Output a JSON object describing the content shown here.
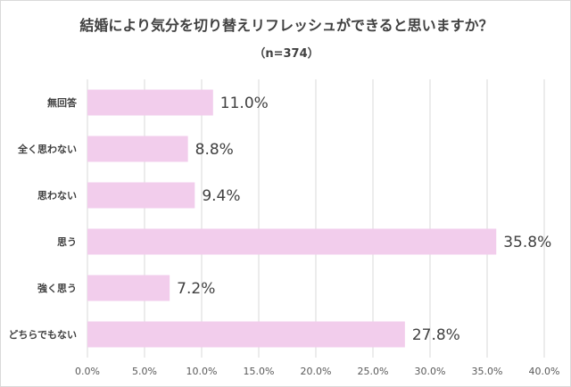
{
  "chart_data": {
    "type": "bar",
    "orientation": "horizontal",
    "title": "結婚により気分を切り替えリフレッシュができると思いますか？",
    "subtitle": "（n=374）",
    "categories": [
      "無回答",
      "全く思わない",
      "思わない",
      "思う",
      "強く思う",
      "どちらでもない"
    ],
    "values": [
      11.0,
      8.8,
      9.4,
      35.8,
      7.2,
      27.8
    ],
    "data_labels": [
      "11.0%",
      "8.8%",
      "9.4%",
      "35.8%",
      "7.2%",
      "27.8%"
    ],
    "xlim": [
      0,
      40
    ],
    "xticks": [
      "0.0%",
      "5.0%",
      "10.0%",
      "15.0%",
      "20.0%",
      "25.0%",
      "30.0%",
      "35.0%",
      "40.0%"
    ],
    "grid": true,
    "bar_color": "#f2cdec"
  }
}
